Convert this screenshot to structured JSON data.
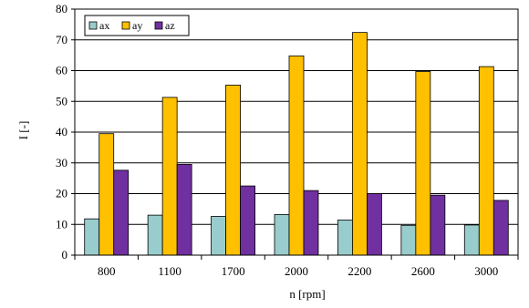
{
  "chart_data": {
    "type": "bar",
    "categories": [
      "800",
      "1100",
      "1700",
      "2000",
      "2200",
      "2600",
      "3000"
    ],
    "series": [
      {
        "name": "ax",
        "color": "#99cccc",
        "values": [
          11.8,
          13.0,
          12.6,
          13.2,
          11.4,
          9.7,
          9.8
        ]
      },
      {
        "name": "ay",
        "color": "#ffc000",
        "values": [
          39.5,
          51.3,
          55.3,
          64.8,
          72.4,
          59.7,
          61.3
        ]
      },
      {
        "name": "az",
        "color": "#7030a0",
        "values": [
          27.6,
          29.5,
          22.5,
          21.0,
          20.0,
          19.5,
          17.8
        ]
      }
    ],
    "xlabel": "n [rpm]",
    "ylabel": "I [-]",
    "ylim": [
      0,
      80
    ],
    "yticks": [
      "0",
      "10",
      "20",
      "30",
      "40",
      "50",
      "60",
      "70",
      "80"
    ],
    "grid": true,
    "legend": "top-left"
  }
}
